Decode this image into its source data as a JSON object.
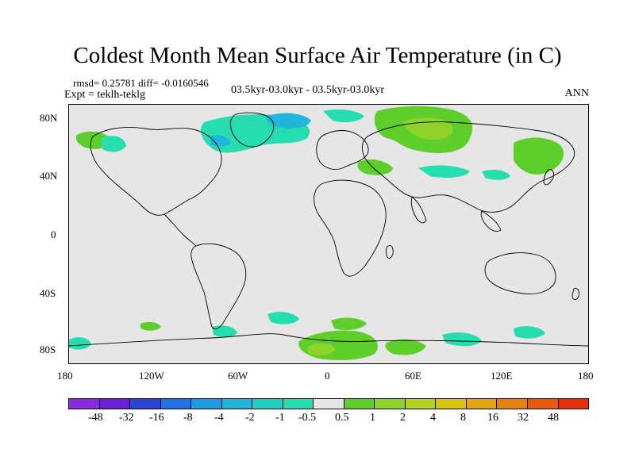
{
  "title": "Coldest Month Mean Surface Air Temperature (in C)",
  "stats": "rmsd= 0.25781 diff= -0.0160546",
  "expt": "Expt = teklh-teklg",
  "subtitle": "03.5kyr-03.0kyr - 03.5kyr-03.0kyr",
  "season": "ANN",
  "axes": {
    "lat_labels": [
      "80N",
      "40N",
      "0",
      "40S",
      "80S"
    ],
    "lon_labels": [
      "180",
      "120W",
      "60W",
      "0",
      "60E",
      "120E",
      "180"
    ]
  },
  "colorbar": {
    "labels": [
      "-48",
      "-32",
      "-16",
      "-8",
      "-4",
      "-2",
      "-1",
      "-0.5",
      "0.5",
      "1",
      "2",
      "4",
      "8",
      "16",
      "32",
      "48"
    ],
    "colors": [
      "#8a2be2",
      "#6a1fd8",
      "#2d45d6",
      "#1f72e8",
      "#1f9ae6",
      "#1fb8dc",
      "#21cfc2",
      "#26ddb0",
      "#e6e6e6",
      "#5ecf2a",
      "#8fd22a",
      "#b6d21f",
      "#d7c512",
      "#e3a610",
      "#e7820e",
      "#e9580c",
      "#e5300a"
    ]
  },
  "colors": {
    "background": "#ffffff",
    "map_fill": "#e6e6e6",
    "neg_small": "#26ddb0",
    "pos_small": "#5ecf2a",
    "pos_mid": "#8fd22a",
    "coast": "#000000"
  }
}
